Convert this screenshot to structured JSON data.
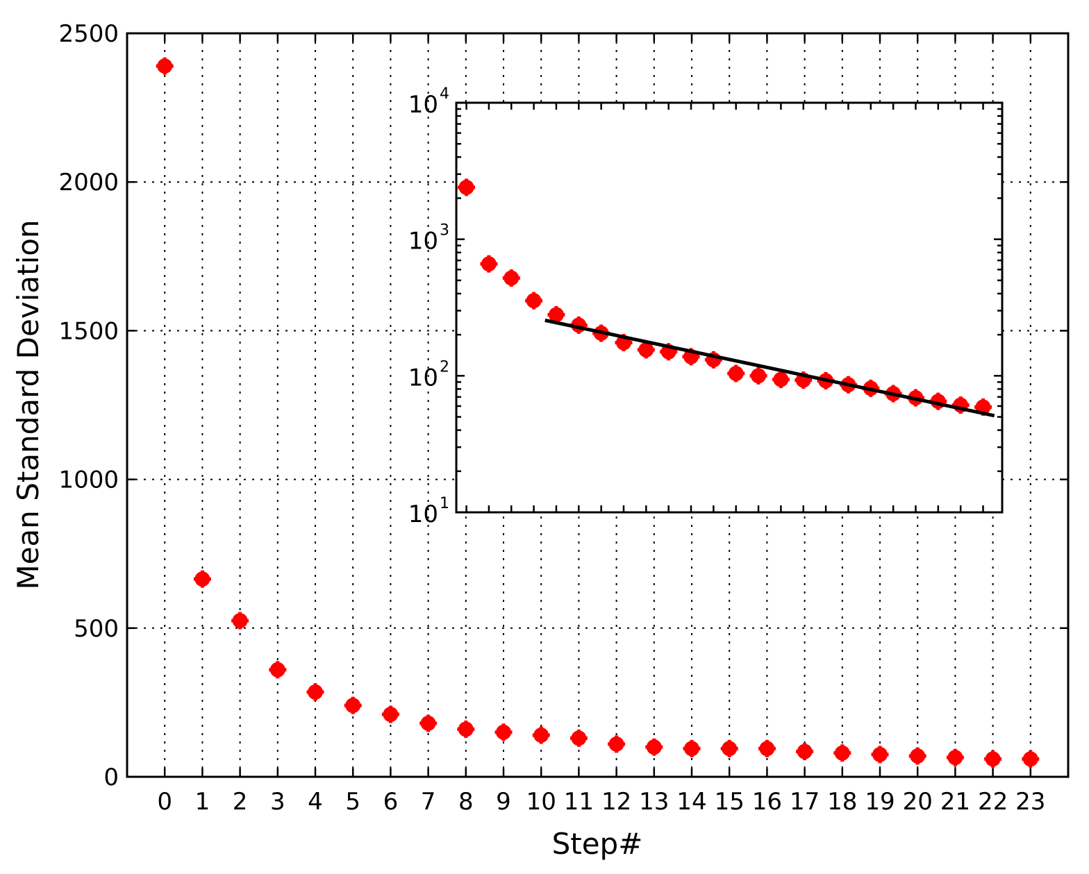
{
  "chart_data": [
    {
      "type": "scatter",
      "xlabel": "Step#",
      "ylabel": "Mean Standard Deviation",
      "xlim": [
        -1,
        24
      ],
      "ylim": [
        0,
        2500
      ],
      "x_ticks": [
        0,
        1,
        2,
        3,
        4,
        5,
        6,
        7,
        8,
        9,
        10,
        11,
        12,
        13,
        14,
        15,
        16,
        17,
        18,
        19,
        20,
        21,
        22,
        23
      ],
      "y_ticks": [
        0,
        500,
        1000,
        1500,
        2000,
        2500
      ],
      "grid": true,
      "marker_color": "#ff0000",
      "series": [
        {
          "x": [
            0,
            1,
            2,
            3,
            4,
            5,
            6,
            7,
            8,
            9,
            10,
            11,
            12,
            13,
            14,
            15,
            16,
            17,
            18,
            19,
            20,
            21,
            22,
            23
          ],
          "y": [
            2390,
            665,
            525,
            360,
            285,
            240,
            210,
            180,
            160,
            150,
            140,
            130,
            110,
            100,
            95,
            95,
            95,
            85,
            80,
            75,
            70,
            65,
            60,
            60
          ]
        }
      ]
    },
    {
      "type": "scatter",
      "inset": true,
      "yscale": "log",
      "ylim": [
        10,
        10000
      ],
      "y_ticks": [
        10,
        100,
        1000,
        10000
      ],
      "y_tick_labels": [
        {
          "base": "10",
          "exp": "1"
        },
        {
          "base": "10",
          "exp": "2"
        },
        {
          "base": "10",
          "exp": "3"
        },
        {
          "base": "10",
          "exp": "4"
        }
      ],
      "xlim": [
        -1,
        24
      ],
      "grid": false,
      "marker_color": "#ff0000",
      "line_color": "#000000",
      "series": [
        {
          "x": [
            0,
            1,
            2,
            3,
            4,
            5,
            6,
            7,
            8,
            9,
            10,
            11,
            12,
            13,
            14,
            15,
            16,
            17,
            18,
            19,
            20,
            21,
            22,
            23
          ],
          "y": [
            2400,
            660,
            520,
            355,
            280,
            235,
            205,
            175,
            155,
            150,
            138,
            131,
            104,
            100,
            94,
            93,
            92,
            86,
            81,
            74,
            69,
            65,
            61,
            59
          ]
        }
      ],
      "fit_line": {
        "x": [
          3.5,
          23.5
        ],
        "y": [
          255,
          51
        ]
      }
    }
  ]
}
